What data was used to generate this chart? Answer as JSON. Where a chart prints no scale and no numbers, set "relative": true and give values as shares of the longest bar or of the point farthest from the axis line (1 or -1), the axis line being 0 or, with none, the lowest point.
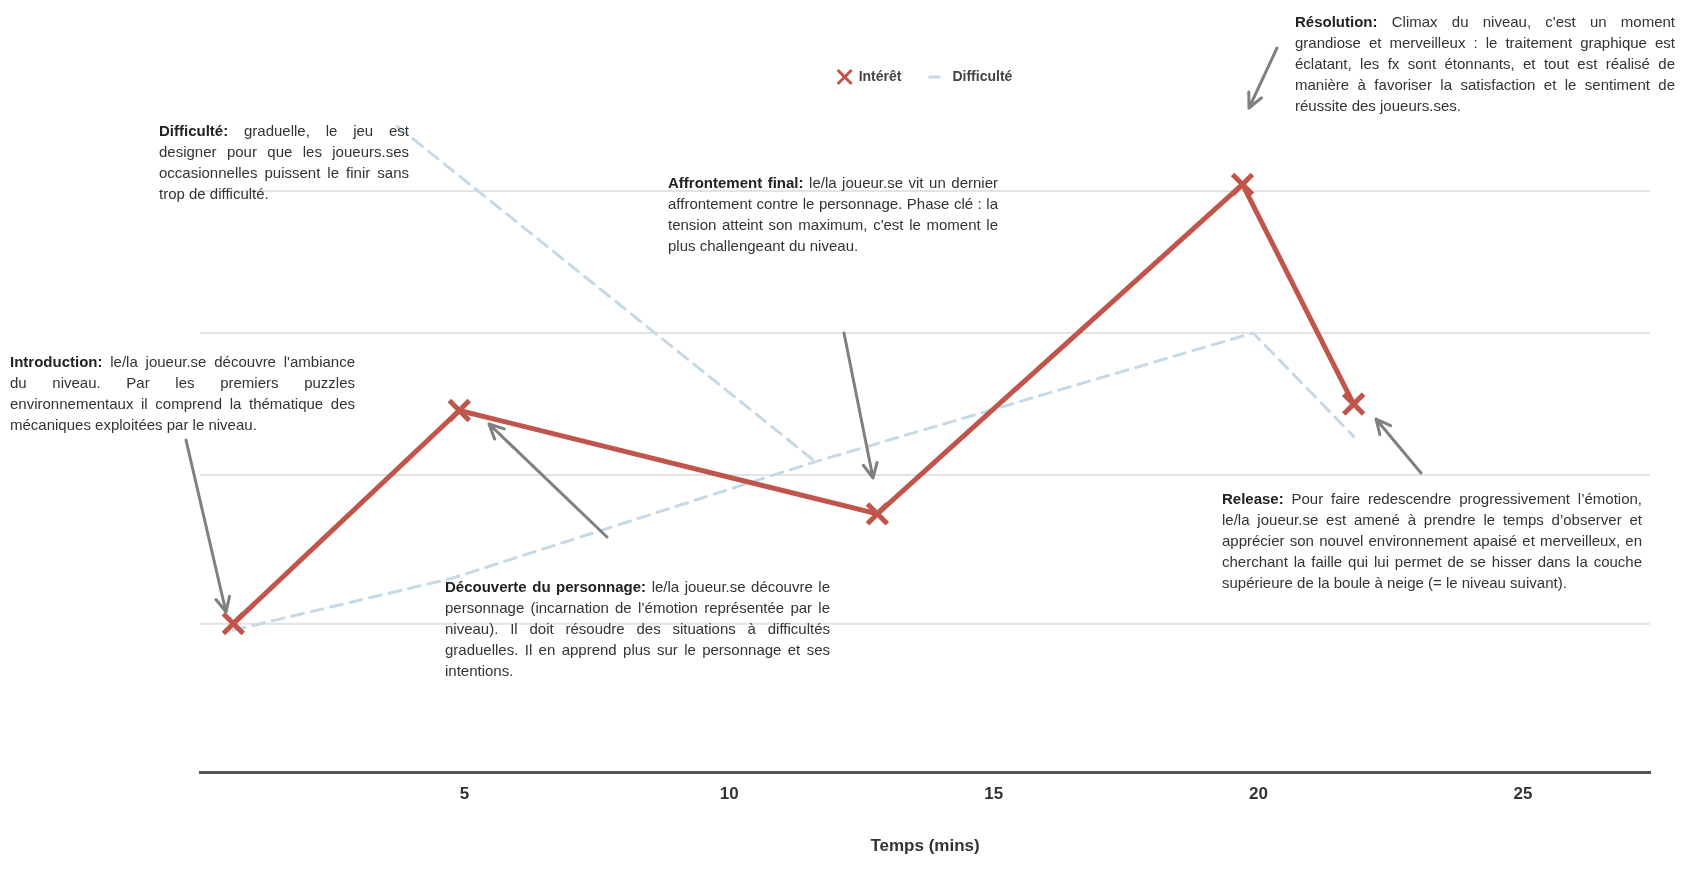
{
  "chart_data": {
    "type": "line",
    "relative": true,
    "xlabel": "Temps (mins)",
    "xlim": [
      0,
      27.4
    ],
    "xticks": [
      5,
      10,
      15,
      20,
      25
    ],
    "legend": "top",
    "ref_lines": [
      {
        "axis": "y",
        "value": 0.23,
        "color": "#e3e3e3"
      },
      {
        "axis": "y",
        "value": 0.46,
        "color": "#e3e3e3"
      },
      {
        "axis": "y",
        "value": 0.68,
        "color": "#e3e3e3"
      },
      {
        "axis": "y",
        "value": 0.9,
        "color": "#e3e3e3"
      }
    ],
    "series": [
      {
        "name": "Intérêt",
        "color": "#c0564b",
        "marker": "cross",
        "line_style": "solid",
        "x": [
          0.63,
          4.9,
          12.8,
          19.7,
          21.8
        ],
        "values": [
          0.23,
          0.56,
          0.4,
          0.91,
          0.57
        ]
      },
      {
        "name": "Difficulté",
        "color": "#c5d9e6",
        "marker": "none",
        "line_style": "dashed",
        "x": [
          0.63,
          4.75,
          11.6,
          19.9,
          21.8
        ],
        "values": [
          0.22,
          0.3,
          0.48,
          0.68,
          0.52
        ]
      },
      {
        "color": "#c5d9e6",
        "marker": "none",
        "line_style": "dashed",
        "x": [
          3.73,
          11.64
        ],
        "values": [
          1,
          0.48
        ]
      }
    ],
    "annotations": [
      "Difficulté: graduelle, le jeu est designer pour que les joueurs.ses occasionnelles puissent le finir sans trop de difficulté.",
      "Introduction: le/la joueur.se découvre l'ambiance du niveau. Par les premiers puzzles environnementaux il comprend la thématique des mécaniques exploitées par le niveau.",
      "Découverte du personnage: le/la joueur.se découvre le personnage (incarnation de l’émotion représentée par le niveau). Il doit résoudre des situations à difficultés graduelles. Il en apprend plus sur le personnage et ses intentions.",
      "Affrontement final: le/la joueur.se vit un dernier affrontement contre le personnage. Phase clé : la tension atteint son maximum, c'est le moment le plus challengeant du niveau.",
      "Résolution: Climax du niveau, c'est un moment grandiose et merveilleux : le traitement graphique est éclatant, les fx sont étonnants, et tout est réalisé de manière à favoriser la satisfaction et le sentiment de réussite des joueurs.ses.",
      "Release: Pour faire redescendre progressivement l’émotion, le/la joueur.se est amené à prendre le temps d’observer et apprécier son nouvel environnement apaisé et merveilleux, en cherchant la faille qui lui permet de se hisser dans la couche supérieure de la boule à neige (= le niveau suivant)."
    ]
  }
}
